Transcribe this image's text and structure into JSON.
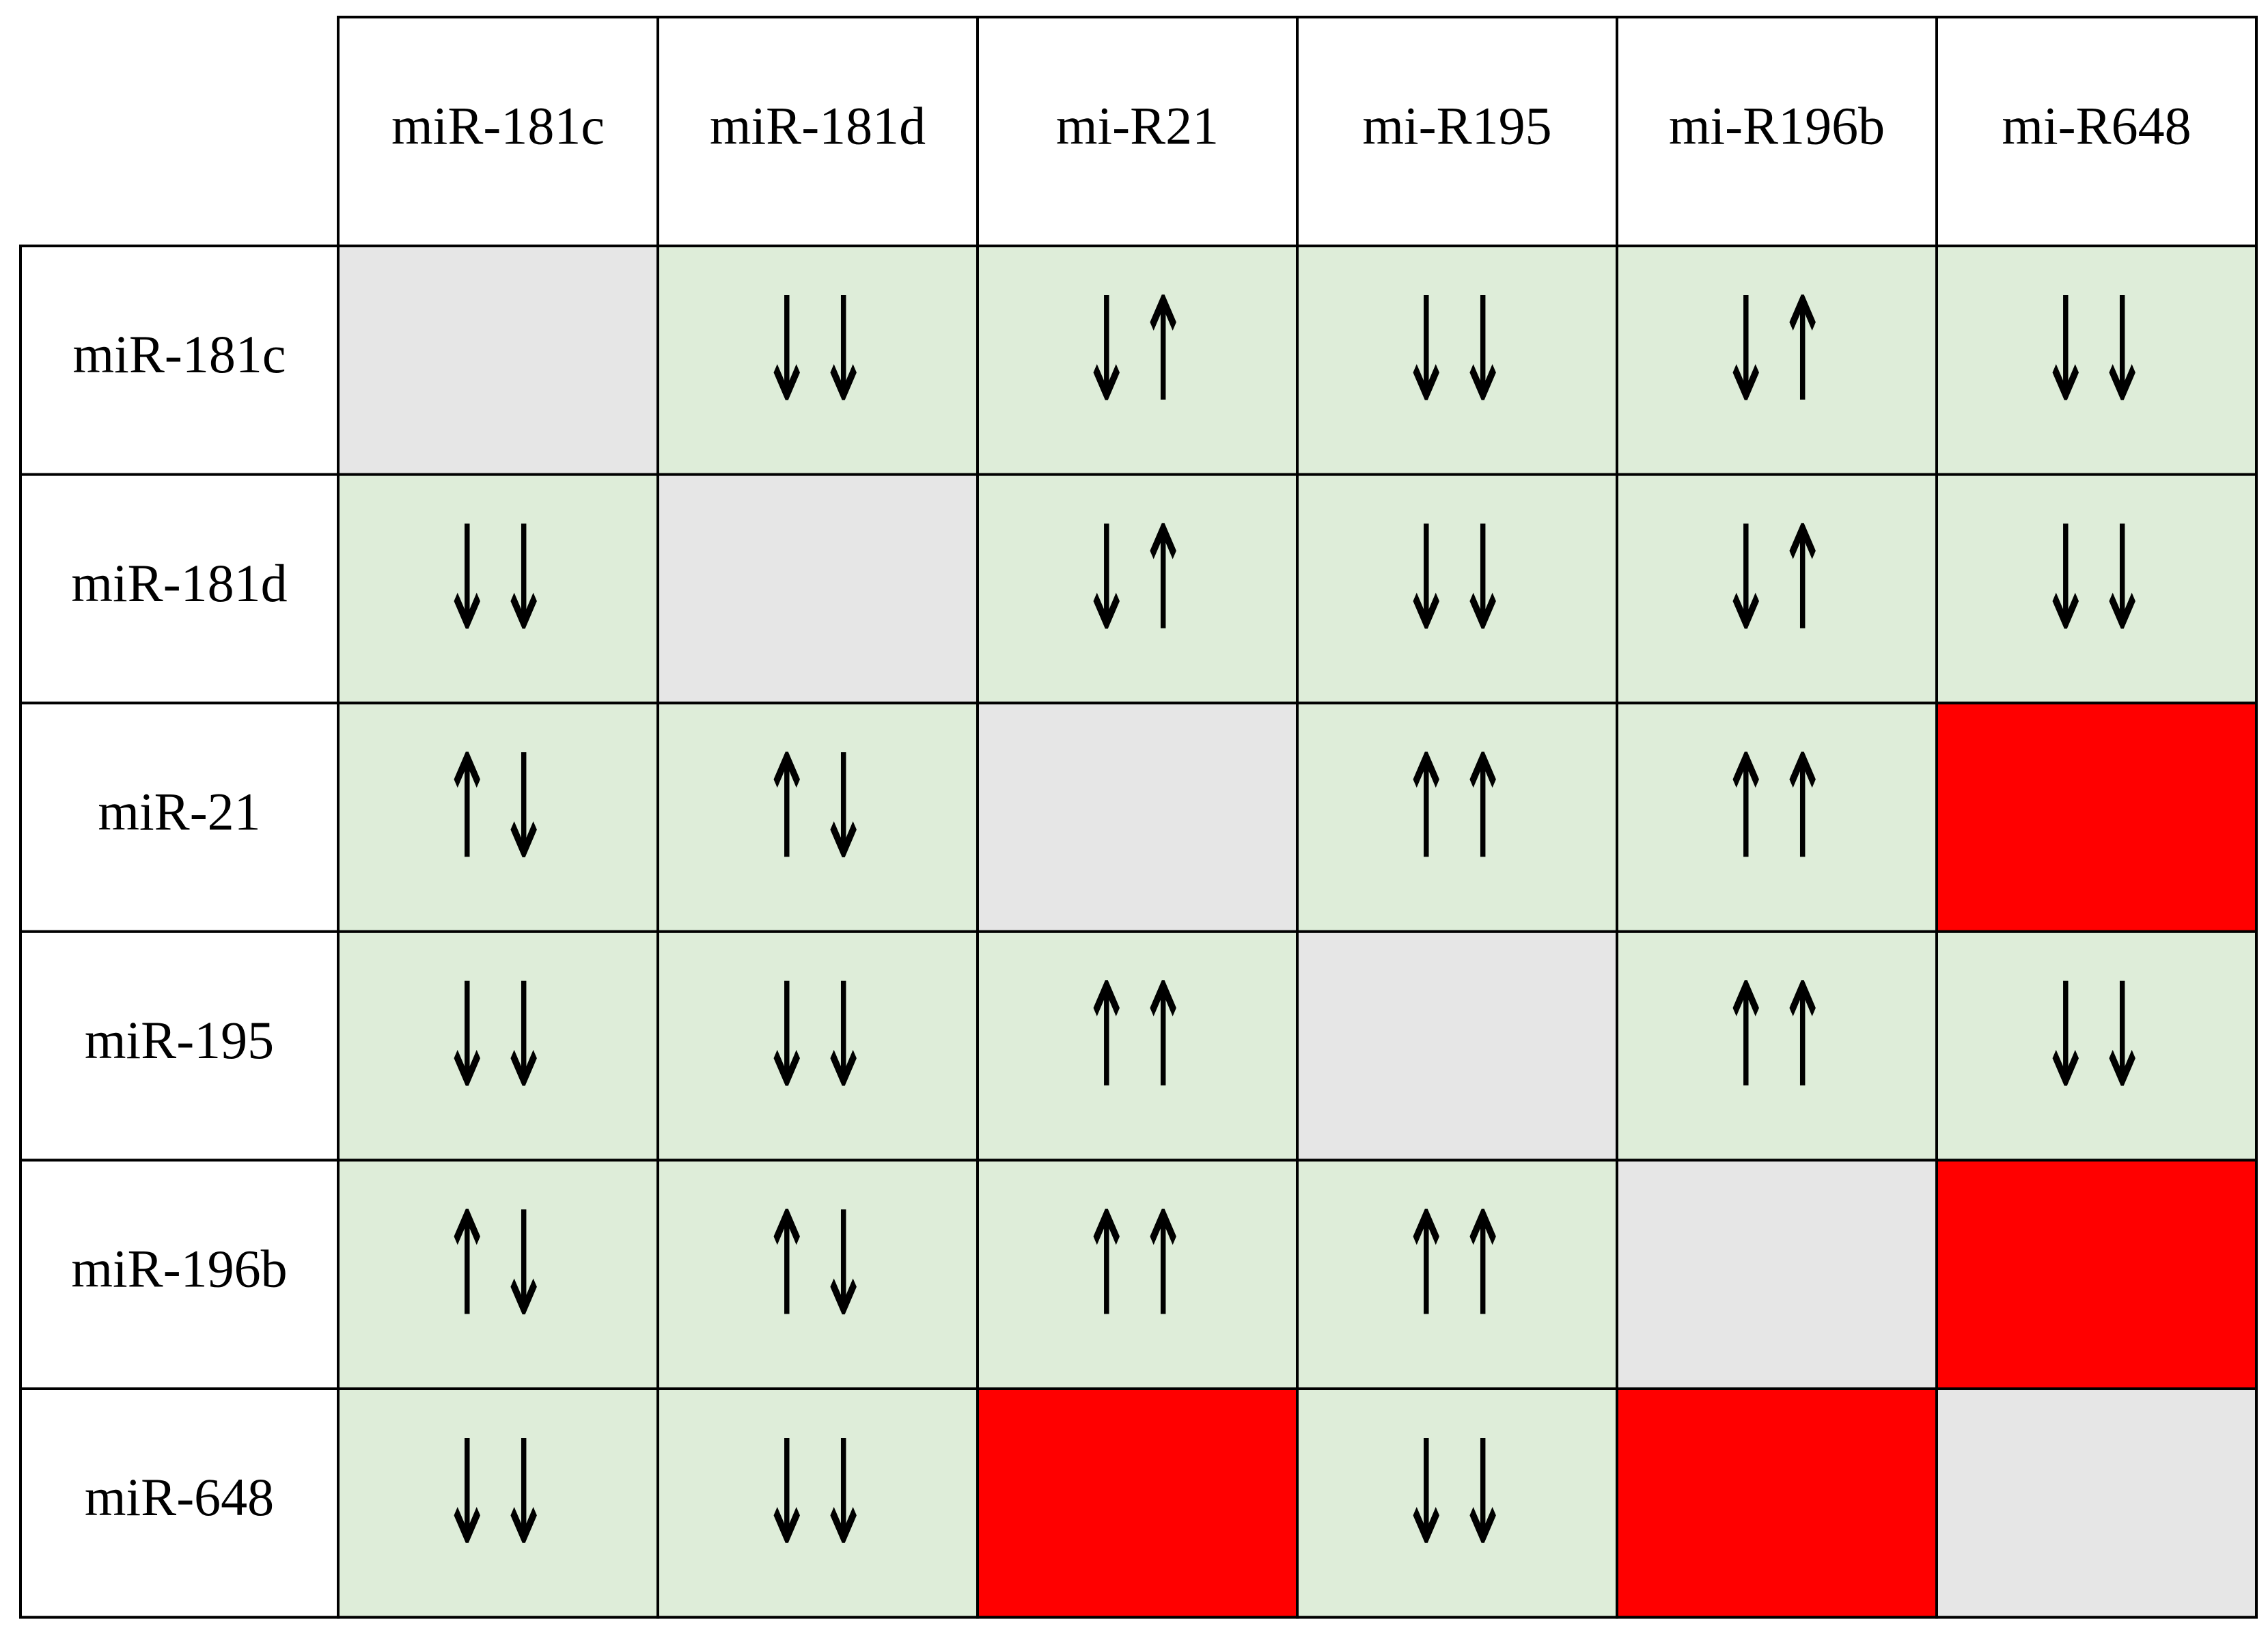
{
  "table": {
    "columns": [
      "miR-181c",
      "miR-181d",
      "mi-R21",
      "mi-R195",
      "mi-R196b",
      "mi-R648"
    ],
    "rows": [
      {
        "label": "miR-181c",
        "cells": [
          {
            "fill": "#e6e6e6"
          },
          {
            "fill": "#deedd9",
            "arrows": "↓↓"
          },
          {
            "fill": "#deedd9",
            "arrows": "↓↑"
          },
          {
            "fill": "#deedd9",
            "arrows": "↓↓"
          },
          {
            "fill": "#deedd9",
            "arrows": "↓↑"
          },
          {
            "fill": "#deedd9",
            "arrows": "↓↓"
          }
        ]
      },
      {
        "label": "miR-181d",
        "cells": [
          {
            "fill": "#deedd9",
            "arrows": "↓↓"
          },
          {
            "fill": "#e6e6e6"
          },
          {
            "fill": "#deedd9",
            "arrows": "↓↑"
          },
          {
            "fill": "#deedd9",
            "arrows": "↓↓"
          },
          {
            "fill": "#deedd9",
            "arrows": "↓↑"
          },
          {
            "fill": "#deedd9",
            "arrows": "↓↓"
          }
        ]
      },
      {
        "label": "miR-21",
        "cells": [
          {
            "fill": "#deedd9",
            "arrows": "↑↓"
          },
          {
            "fill": "#deedd9",
            "arrows": "↑↓"
          },
          {
            "fill": "#e6e6e6"
          },
          {
            "fill": "#deedd9",
            "arrows": "↑↑"
          },
          {
            "fill": "#deedd9",
            "arrows": "↑↑"
          },
          {
            "fill": "#ff0000"
          }
        ]
      },
      {
        "label": "miR-195",
        "cells": [
          {
            "fill": "#deedd9",
            "arrows": "↓↓"
          },
          {
            "fill": "#deedd9",
            "arrows": "↓↓"
          },
          {
            "fill": "#deedd9",
            "arrows": "↑↑"
          },
          {
            "fill": "#e6e6e6"
          },
          {
            "fill": "#deedd9",
            "arrows": "↑↑"
          },
          {
            "fill": "#deedd9",
            "arrows": "↓↓"
          }
        ]
      },
      {
        "label": "miR-196b",
        "cells": [
          {
            "fill": "#deedd9",
            "arrows": "↑↓"
          },
          {
            "fill": "#deedd9",
            "arrows": "↑↓"
          },
          {
            "fill": "#deedd9",
            "arrows": "↑↑"
          },
          {
            "fill": "#deedd9",
            "arrows": "↑↑"
          },
          {
            "fill": "#e6e6e6"
          },
          {
            "fill": "#ff0000"
          }
        ]
      },
      {
        "label": "miR-648",
        "cells": [
          {
            "fill": "#deedd9",
            "arrows": "↓↓"
          },
          {
            "fill": "#deedd9",
            "arrows": "↓↓"
          },
          {
            "fill": "#ff0000"
          },
          {
            "fill": "#deedd9",
            "arrows": "↓↓"
          },
          {
            "fill": "#ff0000"
          },
          {
            "fill": "#e6e6e6"
          }
        ]
      }
    ]
  }
}
